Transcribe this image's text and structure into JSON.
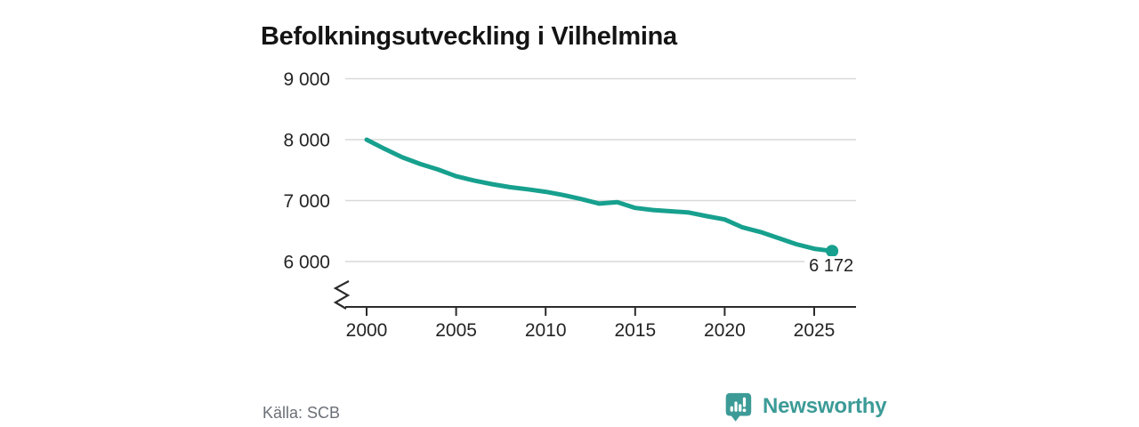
{
  "title": "Befolkningsutveckling i Vilhelmina",
  "source": "Källa: SCB",
  "branding": {
    "name": "Newsworthy",
    "icon": "bar-chart-speech-bubble"
  },
  "colors": {
    "line": "#17a08e",
    "brand": "#3c9b97",
    "grid": "#d9d9d9",
    "axis": "#2b2b2b",
    "tick_text": "#242424",
    "muted_text": "#6b7077",
    "title_text": "#141414"
  },
  "chart_data": {
    "type": "line",
    "title": "Befolkningsutveckling i Vilhelmina",
    "series_name": "Befolkning",
    "x": [
      2000,
      2001,
      2002,
      2003,
      2004,
      2005,
      2006,
      2007,
      2008,
      2009,
      2010,
      2011,
      2012,
      2013,
      2014,
      2015,
      2016,
      2017,
      2018,
      2019,
      2020,
      2021,
      2022,
      2023,
      2024,
      2025,
      2026
    ],
    "values": [
      8000,
      7850,
      7710,
      7600,
      7510,
      7400,
      7330,
      7270,
      7220,
      7185,
      7145,
      7090,
      7025,
      6950,
      6975,
      6880,
      6845,
      6825,
      6805,
      6745,
      6690,
      6560,
      6485,
      6385,
      6285,
      6210,
      6172
    ],
    "xlabel": "",
    "ylabel": "",
    "xticks": [
      2000,
      2005,
      2010,
      2015,
      2020,
      2025
    ],
    "xtick_labels": [
      "2000",
      "2005",
      "2010",
      "2015",
      "2020",
      "2025"
    ],
    "yticks": [
      6000,
      7000,
      8000,
      9000
    ],
    "ytick_labels": [
      "6 000",
      "7 000",
      "8 000",
      "9 000"
    ],
    "ylim": [
      5750,
      9200
    ],
    "grid": "horizontal",
    "axis_break": true,
    "legend": "none",
    "last_point_value": 6172,
    "last_point_label": "6 172"
  }
}
